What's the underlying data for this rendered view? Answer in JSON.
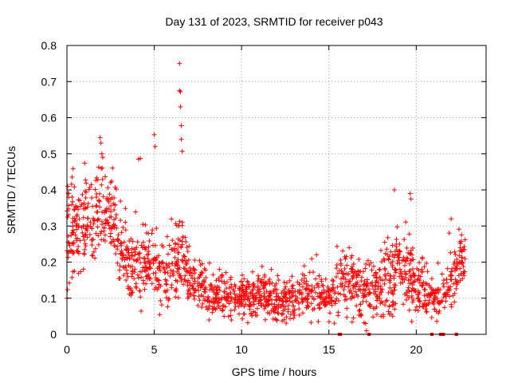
{
  "chart_data": {
    "type": "scatter",
    "title": "Day 131 of 2023, SRMTID for receiver p043",
    "xlabel": "GPS time / hours",
    "ylabel": "SRMTID / TECUs",
    "xlim": [
      0,
      24
    ],
    "ylim": [
      0,
      0.8
    ],
    "xticks": [
      0,
      5,
      10,
      15,
      20
    ],
    "xtick_labels": [
      "0",
      "5",
      "10",
      "15",
      "20"
    ],
    "yticks": [
      0,
      0.1,
      0.2,
      0.3,
      0.4,
      0.5,
      0.6,
      0.7,
      0.8
    ],
    "ytick_labels": [
      "0",
      "0.1",
      "0.2",
      "0.3",
      "0.4",
      "0.5",
      "0.6",
      "0.7",
      "0.8"
    ],
    "grid": true,
    "marker": "+",
    "color": "#ff0000",
    "x_end_hours": 22.8,
    "profile_hours": [
      0,
      0.5,
      1.0,
      1.5,
      2.0,
      2.5,
      3.0,
      3.5,
      4.0,
      4.5,
      5.0,
      5.5,
      6.0,
      6.5,
      7.0,
      7.5,
      8.0,
      8.5,
      9.0,
      9.5,
      10.0,
      10.5,
      11.0,
      11.5,
      12.0,
      12.5,
      13.0,
      13.5,
      14.0,
      14.5,
      15.0,
      15.5,
      16.0,
      16.5,
      17.0,
      17.5,
      18.0,
      18.5,
      19.0,
      19.5,
      20.0,
      20.5,
      21.0,
      21.5,
      22.0,
      22.5,
      23.0
    ],
    "profile_median": [
      0.27,
      0.28,
      0.3,
      0.32,
      0.36,
      0.33,
      0.26,
      0.2,
      0.19,
      0.18,
      0.19,
      0.17,
      0.2,
      0.22,
      0.15,
      0.13,
      0.12,
      0.11,
      0.1,
      0.1,
      0.1,
      0.1,
      0.11,
      0.1,
      0.09,
      0.09,
      0.1,
      0.11,
      0.12,
      0.11,
      0.11,
      0.13,
      0.15,
      0.14,
      0.13,
      0.12,
      0.13,
      0.15,
      0.17,
      0.18,
      0.15,
      0.12,
      0.1,
      0.11,
      0.14,
      0.2,
      0.22
    ],
    "profile_spread": [
      0.08,
      0.08,
      0.07,
      0.07,
      0.07,
      0.06,
      0.06,
      0.05,
      0.05,
      0.05,
      0.05,
      0.05,
      0.06,
      0.06,
      0.04,
      0.04,
      0.03,
      0.03,
      0.03,
      0.03,
      0.03,
      0.03,
      0.03,
      0.03,
      0.03,
      0.03,
      0.03,
      0.03,
      0.04,
      0.03,
      0.03,
      0.05,
      0.05,
      0.05,
      0.05,
      0.04,
      0.05,
      0.06,
      0.06,
      0.06,
      0.05,
      0.04,
      0.03,
      0.03,
      0.05,
      0.04,
      0.04
    ],
    "notable_points": [
      {
        "x": 6.45,
        "y": 0.75
      },
      {
        "x": 6.45,
        "y": 0.675
      },
      {
        "x": 6.5,
        "y": 0.672
      },
      {
        "x": 6.5,
        "y": 0.63
      },
      {
        "x": 6.55,
        "y": 0.578
      },
      {
        "x": 6.55,
        "y": 0.54
      },
      {
        "x": 6.6,
        "y": 0.507
      },
      {
        "x": 5.0,
        "y": 0.553
      },
      {
        "x": 5.05,
        "y": 0.52
      },
      {
        "x": 1.9,
        "y": 0.545
      },
      {
        "x": 1.95,
        "y": 0.53
      },
      {
        "x": 2.0,
        "y": 0.5
      },
      {
        "x": 2.05,
        "y": 0.49
      },
      {
        "x": 4.1,
        "y": 0.485
      },
      {
        "x": 4.2,
        "y": 0.487
      },
      {
        "x": 18.75,
        "y": 0.4
      },
      {
        "x": 19.65,
        "y": 0.39
      },
      {
        "x": 19.7,
        "y": 0.375
      },
      {
        "x": 22.0,
        "y": 0.32
      },
      {
        "x": 17.1,
        "y": 0.03
      },
      {
        "x": 17.15,
        "y": 0.01
      },
      {
        "x": 0.0,
        "y": 0.1
      },
      {
        "x": 0.05,
        "y": 0.41
      },
      {
        "x": 0.1,
        "y": 0.39
      }
    ],
    "zero_markers_hours": [
      15.6,
      15.65,
      17.3,
      20.9,
      21.4,
      21.5,
      21.55,
      22.3
    ]
  }
}
